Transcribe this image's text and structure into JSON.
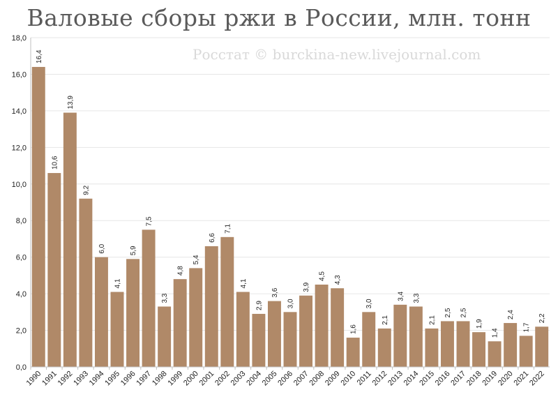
{
  "chart_data": {
    "type": "bar",
    "title": "Валовые сборы ржи в России, млн. тонн",
    "watermark": "Росстат © burckina-new.livejournal.com",
    "categories": [
      "1990",
      "1991",
      "1992",
      "1993",
      "1994",
      "1995",
      "1996",
      "1997",
      "1998",
      "1999",
      "2000",
      "2001",
      "2002",
      "2003",
      "2004",
      "2005",
      "2006",
      "2007",
      "2008",
      "2009",
      "2010",
      "2011",
      "2012",
      "2013",
      "2014",
      "2015",
      "2016",
      "2017",
      "2018",
      "2019",
      "2020",
      "2021",
      "2022"
    ],
    "values": [
      16.4,
      10.6,
      13.9,
      9.2,
      6.0,
      4.1,
      5.9,
      7.5,
      3.3,
      4.8,
      5.4,
      6.6,
      7.1,
      4.1,
      2.9,
      3.6,
      3.0,
      3.9,
      4.5,
      4.3,
      1.6,
      3.0,
      2.1,
      3.4,
      3.3,
      2.1,
      2.5,
      2.5,
      1.9,
      1.4,
      2.4,
      1.7,
      2.2
    ],
    "value_labels": [
      "16,4",
      "10,6",
      "13,9",
      "9,2",
      "6,0",
      "4,1",
      "5,9",
      "7,5",
      "3,3",
      "4,8",
      "5,4",
      "6,6",
      "7,1",
      "4,1",
      "2,9",
      "3,6",
      "3,0",
      "3,9",
      "4,5",
      "4,3",
      "1,6",
      "3,0",
      "2,1",
      "3,4",
      "3,3",
      "2,1",
      "2,5",
      "2,5",
      "1,9",
      "1,4",
      "2,4",
      "1,7",
      "2,2"
    ],
    "y_ticks": [
      "0,0",
      "2,0",
      "4,0",
      "6,0",
      "8,0",
      "10,0",
      "12,0",
      "14,0",
      "16,0",
      "18,0"
    ],
    "ylim": [
      0,
      18
    ],
    "xlabel": "",
    "ylabel": "",
    "grid": true,
    "bar_color": "#b08968",
    "grid_color": "#e6e6e6"
  }
}
